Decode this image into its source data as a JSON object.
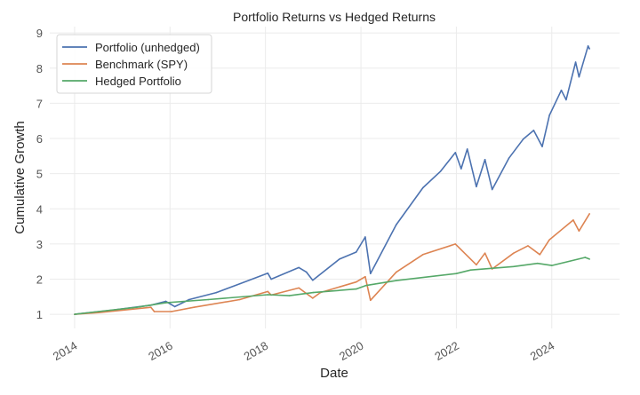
{
  "chart_data": {
    "type": "line",
    "title": "Portfolio Returns vs Hedged Returns",
    "xlabel": "Date",
    "ylabel": "Cumulative Growth",
    "xlim": [
      2013.48,
      2025.42
    ],
    "ylim": [
      0.6,
      9.18
    ],
    "x_ticks": [
      2014,
      2016,
      2018,
      2020,
      2022,
      2024
    ],
    "x_tick_labels": [
      "2014",
      "2016",
      "2018",
      "2020",
      "2022",
      "2024"
    ],
    "y_ticks": [
      1,
      2,
      3,
      4,
      5,
      6,
      7,
      8,
      9
    ],
    "y_tick_labels": [
      "1",
      "2",
      "3",
      "4",
      "5",
      "6",
      "7",
      "8",
      "9"
    ],
    "grid": true,
    "legend_position": "top-left",
    "series": [
      {
        "name": "Portfolio (unhedged)",
        "color": "#4c72b0",
        "x": [
          2014.0,
          2014.67,
          2015.6,
          2015.91,
          2016.1,
          2016.4,
          2016.97,
          2017.46,
          2018.05,
          2018.12,
          2018.7,
          2018.86,
          2018.99,
          2019.55,
          2019.9,
          2020.09,
          2020.2,
          2020.74,
          2021.3,
          2021.67,
          2021.98,
          2022.1,
          2022.23,
          2022.42,
          2022.6,
          2022.75,
          2023.1,
          2023.4,
          2023.62,
          2023.8,
          2023.95,
          2024.2,
          2024.3,
          2024.5,
          2024.57,
          2024.76,
          2024.79
        ],
        "y": [
          1.0,
          1.1,
          1.26,
          1.37,
          1.22,
          1.42,
          1.62,
          1.87,
          2.17,
          2.0,
          2.33,
          2.2,
          1.97,
          2.57,
          2.77,
          3.2,
          2.16,
          3.55,
          4.6,
          5.07,
          5.6,
          5.14,
          5.7,
          4.63,
          5.4,
          4.55,
          5.44,
          5.98,
          6.23,
          5.77,
          6.66,
          7.37,
          7.1,
          8.17,
          7.75,
          8.63,
          8.55
        ]
      },
      {
        "name": "Benchmark (SPY)",
        "color": "#dd8452",
        "x": [
          2014.0,
          2014.5,
          2015.6,
          2015.67,
          2016.03,
          2016.5,
          2017.46,
          2018.05,
          2018.12,
          2018.7,
          2018.99,
          2019.15,
          2019.9,
          2020.09,
          2020.2,
          2020.74,
          2021.3,
          2021.98,
          2022.42,
          2022.6,
          2022.75,
          2023.2,
          2023.5,
          2023.75,
          2023.95,
          2024.45,
          2024.57,
          2024.79
        ],
        "y": [
          1.0,
          1.05,
          1.2,
          1.08,
          1.08,
          1.2,
          1.42,
          1.65,
          1.55,
          1.75,
          1.46,
          1.62,
          1.92,
          2.07,
          1.4,
          2.2,
          2.7,
          3.0,
          2.41,
          2.74,
          2.29,
          2.74,
          2.95,
          2.7,
          3.12,
          3.68,
          3.37,
          3.86
        ]
      },
      {
        "name": "Hedged Portfolio",
        "color": "#55a868",
        "x": [
          2014.0,
          2015.3,
          2015.91,
          2016.8,
          2018.05,
          2018.5,
          2019.0,
          2019.9,
          2020.1,
          2020.74,
          2022.0,
          2022.3,
          2023.2,
          2023.7,
          2024.0,
          2024.7,
          2024.79
        ],
        "y": [
          1.0,
          1.2,
          1.33,
          1.42,
          1.56,
          1.53,
          1.62,
          1.72,
          1.82,
          1.96,
          2.16,
          2.26,
          2.36,
          2.45,
          2.39,
          2.62,
          2.57
        ]
      }
    ]
  }
}
